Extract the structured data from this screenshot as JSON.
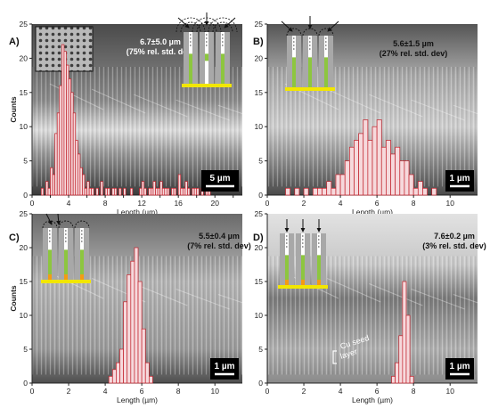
{
  "figure": {
    "colors": {
      "bar_fill": "#f6d9dc",
      "bar_stroke": "#c0202a",
      "sem_dark": "#5c5c5c",
      "sem_light": "#cfcfcf",
      "pore_wall": "#a8a8a8",
      "nanowire": "#8dc63f",
      "seed": "#f39c12",
      "substrate": "#f2e600"
    },
    "shared": {
      "xlabel": "Length (µm)",
      "ylabel": "Counts",
      "inset_label": "Cu seed layer"
    }
  },
  "chart_data": [
    {
      "type": "bar",
      "panel": "A)",
      "stats_line1": "6.7±5.0 µm",
      "stats_line2": "(75% rel. std. dev)",
      "scalebar": "5 µm",
      "xlabel": "Length (µm)",
      "ylabel": "Counts",
      "xlim": [
        0,
        23
      ],
      "ylim": [
        0,
        25
      ],
      "xticks": [
        0,
        2,
        4,
        6,
        8,
        10,
        12,
        14,
        16,
        18,
        20,
        22
      ],
      "xticklabels": [
        "0",
        "",
        "4",
        "",
        "8",
        "",
        "12",
        "",
        "16",
        "",
        "20",
        ""
      ],
      "yticks": [
        0,
        5,
        10,
        15,
        20,
        25
      ],
      "bin_width": 0.25,
      "bins_start": [
        1.0,
        1.25,
        1.5,
        1.75,
        2.0,
        2.25,
        2.5,
        2.75,
        3.0,
        3.25,
        3.5,
        3.75,
        4.0,
        4.25,
        4.5,
        4.75,
        5.0,
        5.25,
        5.5,
        5.75,
        6.0,
        6.25,
        6.5,
        6.75,
        7.0,
        7.25,
        7.5,
        7.75,
        8.0,
        8.25,
        8.5,
        8.75,
        9.0,
        9.25,
        9.5,
        9.75,
        10.0,
        10.25,
        10.5,
        10.75,
        11.0,
        11.25,
        11.5,
        11.75,
        12.0,
        12.25,
        12.5,
        12.75,
        13.0,
        13.25,
        13.5,
        13.75,
        14.0,
        14.25,
        14.5,
        14.75,
        15.0,
        15.25,
        15.5,
        15.75,
        16.0,
        16.25,
        16.5,
        16.75,
        17.0,
        17.25,
        17.5,
        17.75,
        18.0,
        18.25,
        18.5,
        18.75,
        19.0,
        19.25
      ],
      "values": [
        1,
        0,
        2,
        1,
        4,
        3,
        9,
        12,
        16,
        22,
        21,
        19,
        17,
        15,
        12,
        8,
        6,
        4,
        3,
        1,
        2,
        1,
        1,
        0,
        1,
        0,
        2,
        0,
        1,
        1,
        0,
        1,
        1,
        0,
        1,
        0,
        1,
        0,
        0,
        1,
        0,
        0,
        0,
        1,
        2,
        1,
        0,
        1,
        1,
        2,
        1,
        1,
        2,
        1,
        1,
        1,
        0,
        1,
        1,
        0,
        3,
        1,
        1,
        2,
        1,
        0,
        1,
        1,
        1,
        0,
        1,
        0,
        1,
        1
      ]
    },
    {
      "type": "bar",
      "panel": "B)",
      "stats_line1": "5.6±1.5 µm",
      "stats_line2": "(27% rel. std. dev)",
      "scalebar": "1 µm",
      "xlabel": "Length (µm)",
      "ylabel": "",
      "xlim": [
        0,
        11.5
      ],
      "ylim": [
        0,
        25
      ],
      "xticks": [
        0,
        2,
        4,
        6,
        8,
        10
      ],
      "xticklabels": [
        "0",
        "2",
        "4",
        "6",
        "8",
        "10"
      ],
      "yticks": [
        0,
        5,
        10,
        15,
        20,
        25
      ],
      "bin_width": 0.25,
      "bins_start": [
        1.0,
        1.25,
        1.5,
        1.75,
        2.0,
        2.25,
        2.5,
        2.75,
        3.0,
        3.25,
        3.5,
        3.75,
        4.0,
        4.25,
        4.5,
        4.75,
        5.0,
        5.25,
        5.5,
        5.75,
        6.0,
        6.25,
        6.5,
        6.75,
        7.0,
        7.25,
        7.5,
        7.75,
        8.0,
        8.25,
        8.5,
        8.75,
        9.0
      ],
      "values": [
        1,
        0,
        1,
        0,
        1,
        0,
        1,
        1,
        1,
        2,
        1,
        3,
        3,
        5,
        7,
        8,
        9,
        11,
        8,
        10,
        11,
        7,
        8,
        6,
        7,
        5,
        5,
        3,
        1,
        2,
        1,
        0,
        1
      ]
    },
    {
      "type": "bar",
      "panel": "C)",
      "stats_line1": "5.5±0.4 µm",
      "stats_line2": "(7% rel. std. dev)",
      "scalebar": "1 µm",
      "xlabel": "Length (µm)",
      "ylabel": "Counts",
      "xlim": [
        0,
        11.5
      ],
      "ylim": [
        0,
        25
      ],
      "xticks": [
        0,
        2,
        4,
        6,
        8,
        10
      ],
      "xticklabels": [
        "0",
        "2",
        "4",
        "6",
        "8",
        "10"
      ],
      "yticks": [
        0,
        5,
        10,
        15,
        20,
        25
      ],
      "bin_width": 0.2,
      "bins_start": [
        4.2,
        4.4,
        4.6,
        4.8,
        5.0,
        5.2,
        5.4,
        5.6,
        5.8,
        6.0,
        6.2,
        6.4
      ],
      "values": [
        1,
        2,
        3,
        5,
        12,
        16,
        18,
        20,
        15,
        8,
        3,
        1
      ]
    },
    {
      "type": "bar",
      "panel": "D)",
      "stats_line1": "7.6±0.2 µm",
      "stats_line2": "(3% rel. std. dev)",
      "scalebar": "1 µm",
      "xlabel": "Length (µm)",
      "ylabel": "",
      "xlim": [
        0,
        11.5
      ],
      "ylim": [
        0,
        25
      ],
      "xticks": [
        0,
        2,
        4,
        6,
        8,
        10
      ],
      "xticklabels": [
        "0",
        "2",
        "4",
        "6",
        "8",
        "10"
      ],
      "yticks": [
        0,
        5,
        10,
        15,
        20,
        25
      ],
      "bin_width": 0.2,
      "bins_start": [
        6.8,
        7.0,
        7.2,
        7.4,
        7.6,
        7.8
      ],
      "values": [
        1,
        3,
        7,
        15,
        10,
        1
      ]
    }
  ]
}
